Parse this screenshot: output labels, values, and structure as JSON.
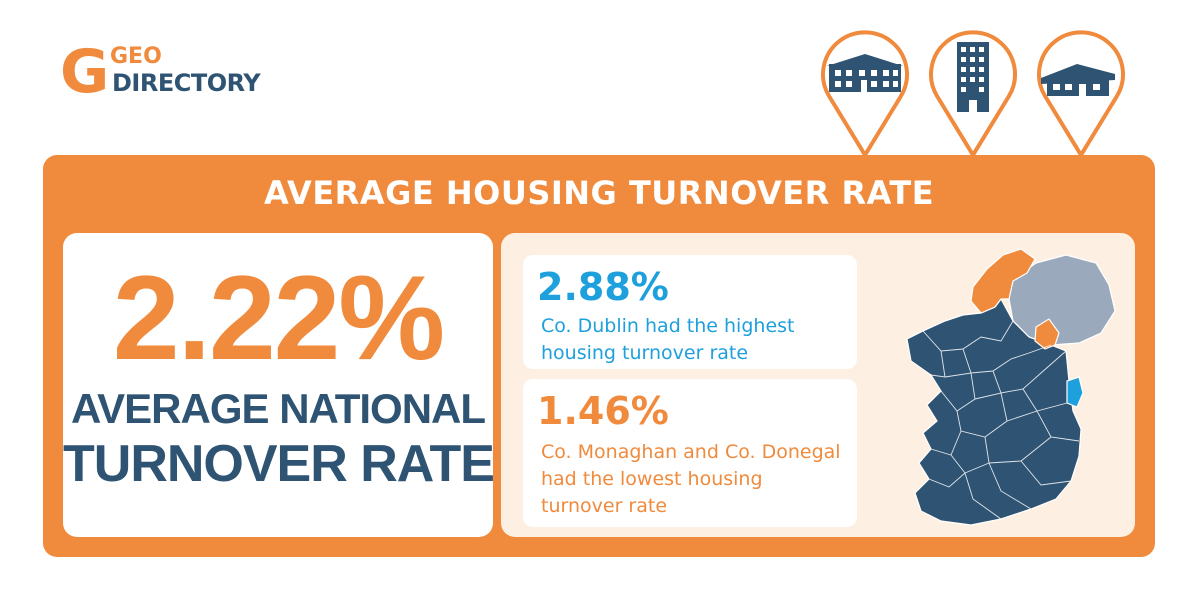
{
  "logo": {
    "mark": "G",
    "line1": "GEO",
    "line2": "DIRECTORY"
  },
  "header_icons": [
    "terraced-house-pin-icon",
    "apartment-building-pin-icon",
    "bungalow-pin-icon"
  ],
  "panel": {
    "title": "AVERAGE HOUSING TURNOVER RATE",
    "national": {
      "value": "2.22%",
      "label_line1": "AVERAGE NATIONAL",
      "label_line2": "TURNOVER RATE"
    },
    "highest": {
      "value": "2.88%",
      "text": "Co. Dublin had the highest housing turnover rate"
    },
    "lowest": {
      "value": "1.46%",
      "text": "Co. Monaghan and Co. Donegal had the lowest housing turnover rate"
    }
  },
  "colors": {
    "orange": "#f08a3c",
    "navy": "#2f5473",
    "blue": "#1ea0dc",
    "grey": "#9aa9bb",
    "cream": "#fdf0e2"
  }
}
